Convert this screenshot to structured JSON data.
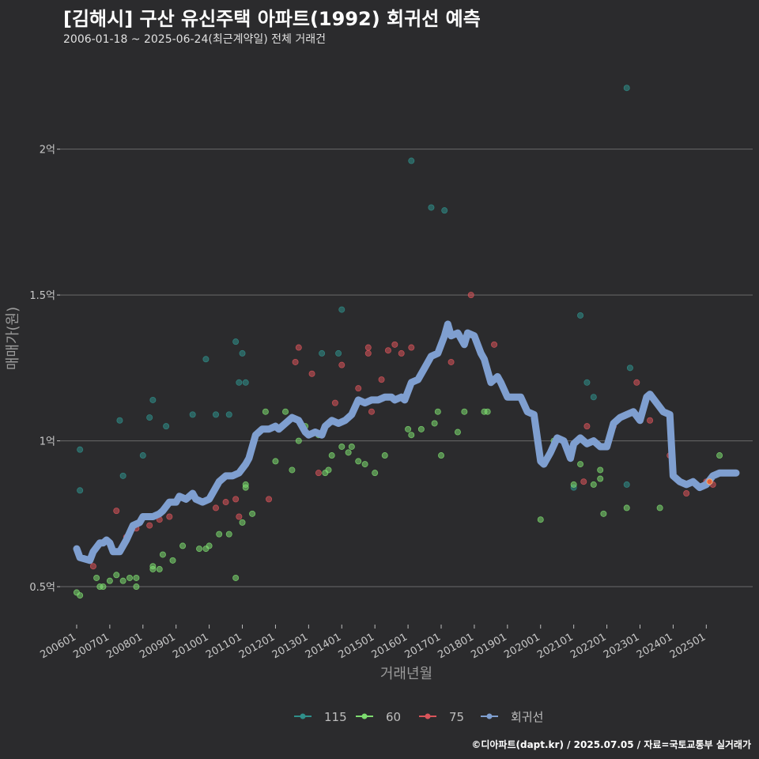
{
  "header": {
    "title": "[김해시] 구산 유신주택 아파트(1992) 회귀선 예측",
    "subtitle": "2006-01-18 ~ 2025-06-24(최근계약일) 전체 거래건"
  },
  "footer": {
    "credit": "©디아파트(dapt.kr) / 2025.07.05 / 자료=국토교통부 실거래가"
  },
  "colors": {
    "background": "#2b2b2d",
    "grid": "#6a6a6a",
    "s115": "#2f8f8a",
    "s60": "#7ddc6f",
    "s75": "#d9545a",
    "regression": "#7f9fd0"
  },
  "chart_data": {
    "type": "scatter",
    "title": "[김해시] 구산 유신주택 아파트(1992) 회귀선 예측",
    "xlabel": "거래년월",
    "ylabel": "매매가(원)",
    "ylim": [
      0.37,
      2.3
    ],
    "yunit": "억",
    "yticks": [
      0.5,
      1,
      1.5,
      2
    ],
    "ytick_labels": [
      "0.5억",
      "1억",
      "1.5억",
      "2억"
    ],
    "xlim": [
      2005.5,
      2026.4
    ],
    "xticks": [
      2006,
      2007,
      2008,
      2009,
      2010,
      2011,
      2012,
      2013,
      2014,
      2015,
      2016,
      2017,
      2018,
      2019,
      2020,
      2021,
      2022,
      2023,
      2024,
      2025
    ],
    "xtick_labels": [
      "200601",
      "200701",
      "200801",
      "200901",
      "201001",
      "201101",
      "201201",
      "201301",
      "201401",
      "201501",
      "201601",
      "201701",
      "201801",
      "201901",
      "202001",
      "202101",
      "202201",
      "202301",
      "202401",
      "202501"
    ],
    "legend_position": "bottom",
    "series": [
      {
        "name": "115",
        "kind": "scatter",
        "points": [
          [
            2006.1,
            0.97
          ],
          [
            2006.1,
            0.83
          ],
          [
            2007.3,
            1.07
          ],
          [
            2007.4,
            0.88
          ],
          [
            2008.0,
            0.95
          ],
          [
            2008.3,
            1.14
          ],
          [
            2008.2,
            1.08
          ],
          [
            2008.7,
            1.05
          ],
          [
            2009.5,
            1.09
          ],
          [
            2009.9,
            1.28
          ],
          [
            2010.2,
            1.09
          ],
          [
            2010.6,
            1.09
          ],
          [
            2010.8,
            1.34
          ],
          [
            2010.9,
            1.2
          ],
          [
            2011.0,
            1.3
          ],
          [
            2011.1,
            1.2
          ],
          [
            2013.4,
            1.3
          ],
          [
            2013.9,
            1.3
          ],
          [
            2014.0,
            1.45
          ],
          [
            2016.1,
            1.96
          ],
          [
            2016.7,
            1.8
          ],
          [
            2017.1,
            1.79
          ],
          [
            2021.2,
            1.43
          ],
          [
            2021.4,
            1.2
          ],
          [
            2021.6,
            1.15
          ],
          [
            2022.6,
            2.21
          ],
          [
            2022.7,
            1.25
          ],
          [
            2022.6,
            0.85
          ],
          [
            2021.0,
            0.84
          ]
        ]
      },
      {
        "name": "60",
        "kind": "scatter",
        "points": [
          [
            2006.0,
            0.48
          ],
          [
            2006.1,
            0.47
          ],
          [
            2006.6,
            0.53
          ],
          [
            2006.7,
            0.5
          ],
          [
            2006.8,
            0.5
          ],
          [
            2007.0,
            0.52
          ],
          [
            2007.2,
            0.54
          ],
          [
            2007.4,
            0.52
          ],
          [
            2007.6,
            0.53
          ],
          [
            2007.8,
            0.5
          ],
          [
            2007.8,
            0.53
          ],
          [
            2008.3,
            0.56
          ],
          [
            2008.3,
            0.57
          ],
          [
            2008.5,
            0.56
          ],
          [
            2008.6,
            0.61
          ],
          [
            2008.9,
            0.59
          ],
          [
            2009.2,
            0.64
          ],
          [
            2009.7,
            0.63
          ],
          [
            2009.9,
            0.63
          ],
          [
            2010.0,
            0.64
          ],
          [
            2010.3,
            0.68
          ],
          [
            2010.6,
            0.68
          ],
          [
            2010.8,
            0.53
          ],
          [
            2011.0,
            0.72
          ],
          [
            2011.1,
            0.84
          ],
          [
            2011.1,
            0.85
          ],
          [
            2011.3,
            0.75
          ],
          [
            2011.7,
            1.1
          ],
          [
            2012.0,
            0.93
          ],
          [
            2012.3,
            1.1
          ],
          [
            2012.5,
            0.9
          ],
          [
            2012.7,
            1.0
          ],
          [
            2012.9,
            1.05
          ],
          [
            2013.3,
            1.02
          ],
          [
            2013.5,
            0.89
          ],
          [
            2013.6,
            0.9
          ],
          [
            2013.7,
            0.95
          ],
          [
            2014.0,
            0.98
          ],
          [
            2014.2,
            0.96
          ],
          [
            2014.3,
            0.98
          ],
          [
            2014.5,
            0.93
          ],
          [
            2014.7,
            0.92
          ],
          [
            2015.0,
            0.89
          ],
          [
            2015.3,
            0.95
          ],
          [
            2016.0,
            1.04
          ],
          [
            2016.1,
            1.02
          ],
          [
            2016.4,
            1.04
          ],
          [
            2016.8,
            1.06
          ],
          [
            2016.9,
            1.1
          ],
          [
            2017.0,
            0.95
          ],
          [
            2017.5,
            1.03
          ],
          [
            2017.7,
            1.1
          ],
          [
            2018.3,
            1.1
          ],
          [
            2018.4,
            1.1
          ],
          [
            2020.0,
            0.73
          ],
          [
            2020.4,
            1.0
          ],
          [
            2021.0,
            0.85
          ],
          [
            2021.2,
            0.92
          ],
          [
            2021.6,
            0.85
          ],
          [
            2021.8,
            0.87
          ],
          [
            2021.8,
            0.9
          ],
          [
            2021.9,
            0.75
          ],
          [
            2022.6,
            0.77
          ],
          [
            2023.6,
            0.77
          ],
          [
            2024.0,
            0.88
          ],
          [
            2025.4,
            0.95
          ]
        ]
      },
      {
        "name": "75",
        "kind": "scatter",
        "points": [
          [
            2006.5,
            0.57
          ],
          [
            2007.2,
            0.76
          ],
          [
            2007.5,
            0.67
          ],
          [
            2007.8,
            0.7
          ],
          [
            2008.2,
            0.71
          ],
          [
            2008.5,
            0.73
          ],
          [
            2008.8,
            0.74
          ],
          [
            2010.2,
            0.77
          ],
          [
            2010.5,
            0.79
          ],
          [
            2010.8,
            0.8
          ],
          [
            2010.9,
            0.74
          ],
          [
            2011.8,
            0.8
          ],
          [
            2012.6,
            1.27
          ],
          [
            2012.7,
            1.32
          ],
          [
            2013.1,
            1.23
          ],
          [
            2013.3,
            0.89
          ],
          [
            2013.8,
            1.13
          ],
          [
            2014.0,
            1.26
          ],
          [
            2014.5,
            1.18
          ],
          [
            2014.8,
            1.3
          ],
          [
            2014.8,
            1.32
          ],
          [
            2014.9,
            1.1
          ],
          [
            2015.2,
            1.21
          ],
          [
            2015.4,
            1.31
          ],
          [
            2015.6,
            1.33
          ],
          [
            2015.8,
            1.3
          ],
          [
            2016.1,
            1.32
          ],
          [
            2017.3,
            1.27
          ],
          [
            2017.9,
            1.5
          ],
          [
            2018.6,
            1.33
          ],
          [
            2021.3,
            0.86
          ],
          [
            2021.4,
            1.05
          ],
          [
            2022.2,
            1.05
          ],
          [
            2022.9,
            1.2
          ],
          [
            2023.3,
            1.07
          ],
          [
            2023.9,
            0.95
          ],
          [
            2024.4,
            0.82
          ],
          [
            2025.0,
            0.86
          ],
          [
            2025.1,
            0.86
          ],
          [
            2025.2,
            0.85
          ]
        ]
      },
      {
        "name": "회귀선",
        "kind": "line",
        "points": [
          [
            2006.0,
            0.63
          ],
          [
            2006.1,
            0.6
          ],
          [
            2006.4,
            0.59
          ],
          [
            2006.5,
            0.62
          ],
          [
            2006.7,
            0.65
          ],
          [
            2006.8,
            0.65
          ],
          [
            2006.9,
            0.66
          ],
          [
            2007.0,
            0.65
          ],
          [
            2007.1,
            0.62
          ],
          [
            2007.3,
            0.62
          ],
          [
            2007.5,
            0.66
          ],
          [
            2007.7,
            0.71
          ],
          [
            2007.9,
            0.72
          ],
          [
            2008.0,
            0.74
          ],
          [
            2008.3,
            0.74
          ],
          [
            2008.5,
            0.75
          ],
          [
            2008.6,
            0.76
          ],
          [
            2008.8,
            0.79
          ],
          [
            2009.0,
            0.79
          ],
          [
            2009.1,
            0.81
          ],
          [
            2009.3,
            0.8
          ],
          [
            2009.5,
            0.82
          ],
          [
            2009.6,
            0.8
          ],
          [
            2009.8,
            0.79
          ],
          [
            2010.0,
            0.8
          ],
          [
            2010.3,
            0.86
          ],
          [
            2010.5,
            0.88
          ],
          [
            2010.7,
            0.88
          ],
          [
            2010.9,
            0.89
          ],
          [
            2011.1,
            0.92
          ],
          [
            2011.2,
            0.94
          ],
          [
            2011.4,
            1.02
          ],
          [
            2011.6,
            1.04
          ],
          [
            2011.8,
            1.04
          ],
          [
            2012.0,
            1.05
          ],
          [
            2012.1,
            1.04
          ],
          [
            2012.3,
            1.06
          ],
          [
            2012.5,
            1.08
          ],
          [
            2012.7,
            1.07
          ],
          [
            2012.9,
            1.03
          ],
          [
            2013.0,
            1.02
          ],
          [
            2013.2,
            1.03
          ],
          [
            2013.4,
            1.02
          ],
          [
            2013.5,
            1.05
          ],
          [
            2013.7,
            1.07
          ],
          [
            2013.9,
            1.06
          ],
          [
            2014.1,
            1.07
          ],
          [
            2014.3,
            1.09
          ],
          [
            2014.5,
            1.14
          ],
          [
            2014.7,
            1.13
          ],
          [
            2014.9,
            1.14
          ],
          [
            2015.1,
            1.14
          ],
          [
            2015.3,
            1.15
          ],
          [
            2015.5,
            1.15
          ],
          [
            2015.6,
            1.14
          ],
          [
            2015.8,
            1.15
          ],
          [
            2015.9,
            1.14
          ],
          [
            2016.1,
            1.2
          ],
          [
            2016.3,
            1.21
          ],
          [
            2016.5,
            1.25
          ],
          [
            2016.7,
            1.29
          ],
          [
            2016.9,
            1.3
          ],
          [
            2017.1,
            1.36
          ],
          [
            2017.2,
            1.4
          ],
          [
            2017.3,
            1.36
          ],
          [
            2017.5,
            1.37
          ],
          [
            2017.7,
            1.33
          ],
          [
            2017.8,
            1.37
          ],
          [
            2018.0,
            1.36
          ],
          [
            2018.2,
            1.3
          ],
          [
            2018.3,
            1.28
          ],
          [
            2018.5,
            1.2
          ],
          [
            2018.7,
            1.22
          ],
          [
            2018.8,
            1.2
          ],
          [
            2019.0,
            1.15
          ],
          [
            2019.2,
            1.15
          ],
          [
            2019.4,
            1.15
          ],
          [
            2019.6,
            1.1
          ],
          [
            2019.8,
            1.09
          ],
          [
            2020.0,
            0.93
          ],
          [
            2020.1,
            0.92
          ],
          [
            2020.3,
            0.96
          ],
          [
            2020.5,
            1.01
          ],
          [
            2020.7,
            1.0
          ],
          [
            2020.9,
            0.94
          ],
          [
            2021.0,
            0.99
          ],
          [
            2021.2,
            1.01
          ],
          [
            2021.4,
            0.99
          ],
          [
            2021.6,
            1.0
          ],
          [
            2021.8,
            0.98
          ],
          [
            2022.0,
            0.98
          ],
          [
            2022.2,
            1.06
          ],
          [
            2022.4,
            1.08
          ],
          [
            2022.6,
            1.09
          ],
          [
            2022.8,
            1.1
          ],
          [
            2023.0,
            1.07
          ],
          [
            2023.2,
            1.15
          ],
          [
            2023.3,
            1.16
          ],
          [
            2023.5,
            1.13
          ],
          [
            2023.7,
            1.1
          ],
          [
            2023.9,
            1.09
          ],
          [
            2024.0,
            0.88
          ],
          [
            2024.2,
            0.86
          ],
          [
            2024.4,
            0.85
          ],
          [
            2024.6,
            0.86
          ],
          [
            2024.8,
            0.84
          ],
          [
            2025.0,
            0.85
          ],
          [
            2025.2,
            0.88
          ],
          [
            2025.4,
            0.89
          ],
          [
            2025.6,
            0.89
          ],
          [
            2025.9,
            0.89
          ]
        ]
      }
    ]
  }
}
